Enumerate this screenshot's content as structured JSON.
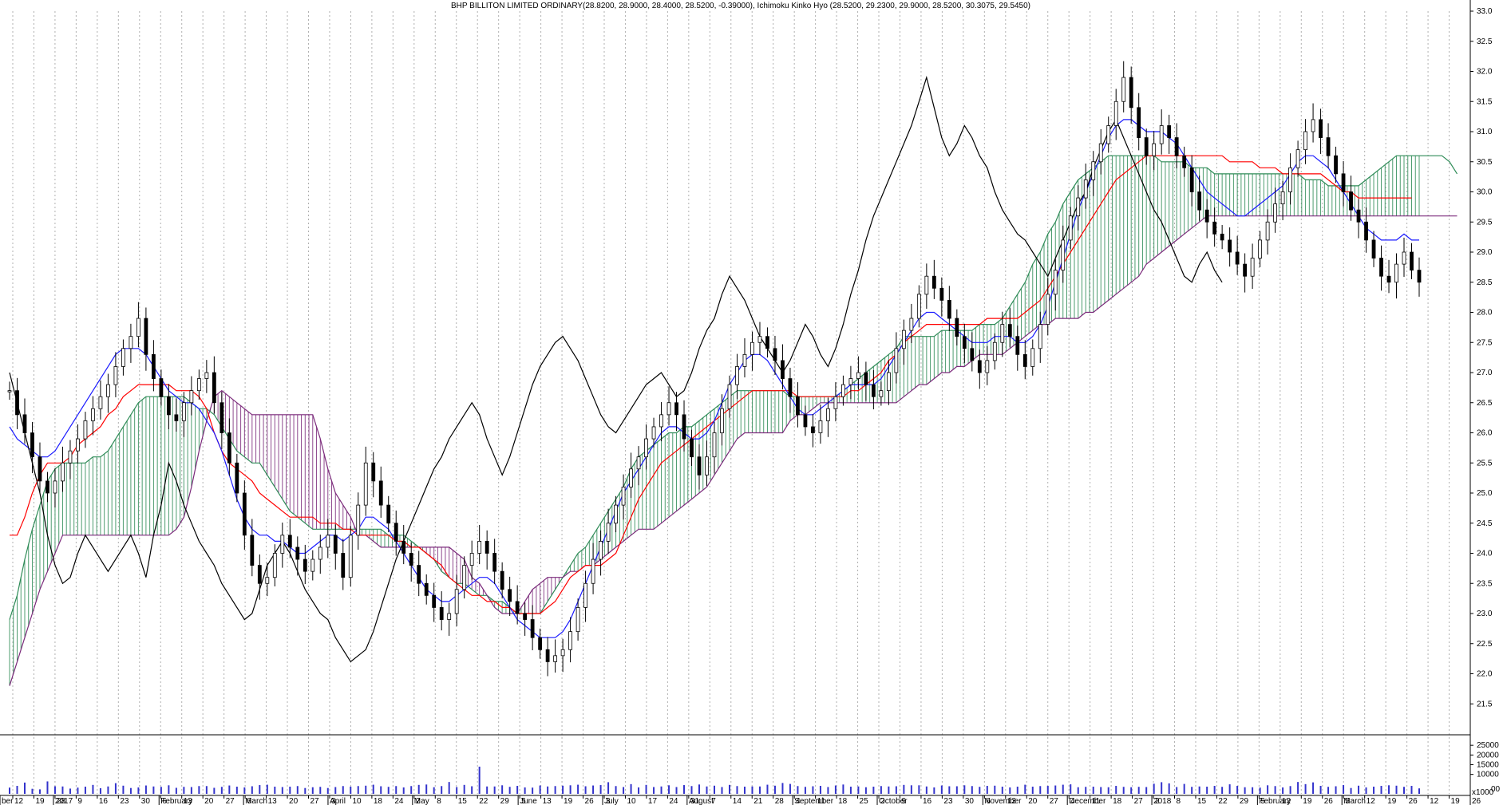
{
  "chart_data": {
    "type": "candlestick",
    "title": "BHP BILLITON LIMITED  ORDINARY(28.8200, 28.9000, 28.4000, 28.5200, -0.39000), Ichimoku Kinko Hyo (28.5200, 29.2300, 29.9000, 28.5200, 30.3075, 29.5450)",
    "y_axis": {
      "ylim": [
        21.0,
        33.0
      ],
      "ticks": [
        21.5,
        22.0,
        22.5,
        23.0,
        23.5,
        24.0,
        24.5,
        25.0,
        25.5,
        26.0,
        26.5,
        27.0,
        27.5,
        28.0,
        28.5,
        29.0,
        29.5,
        30.0,
        30.5,
        31.0,
        31.5,
        32.0,
        32.5,
        33.0
      ],
      "tick_labels": [
        "21.5",
        "22.0",
        "22.5",
        "23.0",
        "23.5",
        "24.0",
        "24.5",
        "25.0",
        "25.5",
        "26.0",
        "26.5",
        "27.0",
        "27.5",
        "28.0",
        "28.5",
        "29.0",
        "29.5",
        "30.0",
        "30.5",
        "31.0",
        "31.5",
        "32.0",
        "32.5",
        "33.0"
      ]
    },
    "volume_axis": {
      "ylim": [
        0,
        30000
      ],
      "ticks": [
        10000,
        15000,
        20000,
        25000
      ],
      "tick_labels": [
        "10000",
        "15000",
        "20000",
        "25000"
      ],
      "extra_labels": [
        "x1000",
        "00"
      ]
    },
    "x_axis": {
      "day_labels": [
        "12",
        "19",
        "28",
        "9",
        "16",
        "23",
        "30",
        "6",
        "13",
        "20",
        "27",
        "6",
        "13",
        "20",
        "27",
        "3",
        "10",
        "18",
        "24",
        "2",
        "8",
        "15",
        "22",
        "29",
        "5",
        "13",
        "19",
        "26",
        "3",
        "10",
        "17",
        "24",
        "31",
        "7",
        "14",
        "21",
        "28",
        "4",
        "11",
        "18",
        "25",
        "2",
        "9",
        "16",
        "23",
        "30",
        "6",
        "13",
        "20",
        "27",
        "4",
        "11",
        "18",
        "27",
        "2",
        "8",
        "15",
        "22",
        "29",
        "5",
        "12",
        "19",
        "26",
        "5",
        "12",
        "19",
        "26"
      ],
      "month_labels": [
        "ber",
        "2017",
        "February",
        "March",
        "April",
        "May",
        "June",
        "July",
        "August",
        "September",
        "October",
        "November",
        "December",
        "2018",
        "February",
        "March"
      ],
      "future_labels": [
        "12",
        "19",
        "26"
      ]
    },
    "close": [
      26.7,
      26.3,
      26.0,
      25.6,
      25.2,
      25.0,
      25.2,
      25.5,
      25.7,
      25.9,
      26.2,
      26.4,
      26.6,
      26.8,
      27.1,
      27.4,
      27.6,
      27.9,
      27.3,
      26.9,
      26.6,
      26.3,
      26.2,
      26.5,
      26.7,
      26.9,
      27.0,
      26.5,
      26.0,
      25.5,
      25.0,
      24.3,
      23.8,
      23.5,
      23.6,
      24.0,
      24.3,
      24.1,
      23.9,
      23.7,
      23.9,
      24.1,
      24.3,
      24.0,
      23.6,
      24.3,
      24.8,
      25.5,
      25.2,
      24.8,
      24.5,
      24.2,
      24.0,
      23.8,
      23.5,
      23.3,
      23.1,
      22.9,
      23.0,
      23.4,
      23.8,
      24.0,
      24.2,
      24.0,
      23.7,
      23.4,
      23.2,
      23.0,
      22.9,
      22.6,
      22.4,
      22.2,
      22.3,
      22.4,
      22.7,
      23.1,
      23.5,
      23.9,
      24.2,
      24.5,
      24.8,
      25.1,
      25.4,
      25.6,
      25.9,
      26.1,
      26.3,
      26.5,
      26.3,
      25.9,
      25.6,
      25.3,
      25.6,
      26.0,
      26.4,
      26.8,
      27.1,
      27.3,
      27.5,
      27.6,
      27.4,
      27.2,
      26.9,
      26.6,
      26.3,
      26.1,
      26.0,
      26.2,
      26.4,
      26.6,
      26.8,
      26.9,
      27.0,
      26.8,
      26.6,
      26.7,
      27.0,
      27.4,
      27.7,
      27.9,
      28.3,
      28.6,
      28.4,
      28.2,
      27.9,
      27.6,
      27.4,
      27.2,
      27.0,
      27.2,
      27.5,
      27.8,
      27.6,
      27.3,
      27.1,
      27.4,
      27.8,
      28.3,
      28.7,
      29.2,
      29.6,
      29.9,
      30.2,
      30.5,
      30.8,
      31.1,
      31.5,
      31.9,
      31.4,
      30.9,
      30.6,
      30.8,
      31.1,
      30.9,
      30.6,
      30.4,
      30.0,
      29.7,
      29.5,
      29.3,
      29.2,
      29.0,
      28.8,
      28.6,
      28.9,
      29.2,
      29.5,
      29.8,
      30.0,
      30.4,
      30.7,
      31.0,
      31.2,
      30.9,
      30.6,
      30.3,
      30.0,
      29.7,
      29.5,
      29.2,
      28.9,
      28.6,
      28.5,
      28.8,
      29.0,
      28.7,
      28.5
    ],
    "tenkan": [
      26.1,
      25.9,
      25.8,
      25.7,
      25.6,
      25.6,
      25.7,
      25.9,
      26.1,
      26.3,
      26.5,
      26.7,
      26.9,
      27.1,
      27.3,
      27.4,
      27.4,
      27.4,
      27.3,
      27.1,
      26.9,
      26.7,
      26.6,
      26.5,
      26.5,
      26.4,
      26.2,
      26.0,
      25.7,
      25.3,
      24.9,
      24.6,
      24.4,
      24.3,
      24.3,
      24.2,
      24.2,
      24.1,
      24.0,
      24.0,
      24.1,
      24.2,
      24.3,
      24.3,
      24.2,
      24.3,
      24.4,
      24.6,
      24.6,
      24.5,
      24.4,
      24.2,
      24.0,
      23.8,
      23.6,
      23.4,
      23.3,
      23.2,
      23.2,
      23.3,
      23.4,
      23.5,
      23.6,
      23.6,
      23.5,
      23.3,
      23.1,
      22.9,
      22.8,
      22.7,
      22.6,
      22.6,
      22.6,
      22.7,
      22.9,
      23.2,
      23.5,
      23.8,
      24.1,
      24.4,
      24.7,
      25.0,
      25.2,
      25.4,
      25.6,
      25.8,
      26.0,
      26.1,
      26.1,
      26.0,
      25.9,
      25.9,
      26.0,
      26.2,
      26.5,
      26.8,
      27.0,
      27.2,
      27.3,
      27.3,
      27.2,
      27.0,
      26.8,
      26.6,
      26.4,
      26.3,
      26.3,
      26.4,
      26.5,
      26.6,
      26.7,
      26.8,
      26.8,
      26.8,
      26.8,
      26.9,
      27.1,
      27.3,
      27.5,
      27.7,
      27.9,
      28.0,
      28.0,
      27.9,
      27.8,
      27.7,
      27.6,
      27.5,
      27.5,
      27.5,
      27.6,
      27.6,
      27.6,
      27.5,
      27.5,
      27.6,
      27.8,
      28.1,
      28.5,
      28.9,
      29.3,
      29.7,
      30.0,
      30.3,
      30.6,
      30.9,
      31.1,
      31.2,
      31.2,
      31.1,
      31.0,
      31.0,
      31.0,
      30.9,
      30.8,
      30.6,
      30.4,
      30.2,
      30.0,
      29.9,
      29.8,
      29.7,
      29.6,
      29.6,
      29.7,
      29.8,
      29.9,
      30.0,
      30.1,
      30.3,
      30.5,
      30.6,
      30.6,
      30.5,
      30.4,
      30.2,
      30.0,
      29.8,
      29.6,
      29.4,
      29.3,
      29.2,
      29.2,
      29.2,
      29.3,
      29.2,
      29.2
    ],
    "kijun": [
      24.3,
      24.3,
      24.6,
      25.0,
      25.3,
      25.5,
      25.5,
      25.5,
      25.6,
      25.8,
      25.9,
      26.0,
      26.1,
      26.3,
      26.4,
      26.6,
      26.7,
      26.8,
      26.8,
      26.8,
      26.8,
      26.8,
      26.7,
      26.7,
      26.7,
      26.6,
      26.4,
      26.0,
      25.7,
      25.5,
      25.4,
      25.3,
      25.2,
      25.0,
      24.9,
      24.8,
      24.7,
      24.6,
      24.6,
      24.6,
      24.6,
      24.5,
      24.5,
      24.5,
      24.4,
      24.4,
      24.3,
      24.3,
      24.3,
      24.3,
      24.3,
      24.2,
      24.2,
      24.1,
      24.1,
      24.0,
      23.9,
      23.8,
      23.6,
      23.5,
      23.4,
      23.3,
      23.3,
      23.2,
      23.2,
      23.1,
      23.1,
      23.0,
      23.0,
      23.0,
      23.0,
      23.1,
      23.2,
      23.4,
      23.6,
      23.7,
      23.8,
      23.8,
      23.8,
      23.9,
      24.0,
      24.3,
      24.6,
      24.9,
      25.1,
      25.3,
      25.5,
      25.6,
      25.7,
      25.8,
      25.9,
      26.0,
      26.1,
      26.2,
      26.3,
      26.4,
      26.5,
      26.6,
      26.7,
      26.7,
      26.7,
      26.7,
      26.7,
      26.7,
      26.6,
      26.6,
      26.6,
      26.6,
      26.6,
      26.6,
      26.6,
      26.7,
      26.7,
      26.8,
      26.9,
      27.0,
      27.2,
      27.3,
      27.5,
      27.6,
      27.7,
      27.8,
      27.8,
      27.8,
      27.8,
      27.8,
      27.8,
      27.8,
      27.8,
      27.9,
      27.9,
      27.9,
      27.9,
      27.9,
      28.0,
      28.1,
      28.2,
      28.4,
      28.6,
      28.8,
      29.0,
      29.2,
      29.4,
      29.6,
      29.8,
      30.0,
      30.2,
      30.3,
      30.4,
      30.5,
      30.6,
      30.6,
      30.6,
      30.6,
      30.6,
      30.6,
      30.6,
      30.6,
      30.6,
      30.6,
      30.6,
      30.5,
      30.5,
      30.5,
      30.5,
      30.4,
      30.4,
      30.4,
      30.3,
      30.3,
      30.3,
      30.3,
      30.3,
      30.3,
      30.2,
      30.1,
      30.0,
      30.0,
      29.9,
      29.9,
      29.9,
      29.9,
      29.9,
      29.9,
      29.9,
      29.9
    ],
    "senkou_a": [
      22.9,
      23.3,
      23.9,
      24.4,
      24.8,
      25.2,
      25.4,
      25.5,
      25.5,
      25.5,
      25.5,
      25.6,
      25.6,
      25.7,
      25.9,
      26.1,
      26.3,
      26.5,
      26.6,
      26.6,
      26.6,
      26.6,
      26.6,
      26.6,
      26.5,
      26.4,
      26.4,
      26.3,
      26.1,
      25.9,
      25.7,
      25.6,
      25.5,
      25.5,
      25.3,
      25.1,
      24.9,
      24.7,
      24.6,
      24.5,
      24.4,
      24.4,
      24.4,
      24.4,
      24.4,
      24.4,
      24.4,
      24.4,
      24.4,
      24.4,
      24.3,
      24.3,
      24.3,
      24.2,
      24.1,
      24.0,
      23.9,
      23.7,
      23.6,
      23.5,
      23.5,
      23.4,
      23.3,
      23.3,
      23.2,
      23.2,
      23.1,
      23.0,
      23.0,
      23.0,
      23.0,
      23.2,
      23.4,
      23.6,
      23.8,
      24.0,
      24.1,
      24.3,
      24.5,
      24.7,
      24.9,
      25.1,
      25.4,
      25.6,
      25.7,
      25.8,
      25.9,
      26.0,
      26.0,
      26.1,
      26.1,
      26.2,
      26.3,
      26.4,
      26.5,
      26.6,
      26.7,
      26.7,
      26.7,
      26.7,
      26.7,
      26.7,
      26.7,
      26.6,
      26.6,
      26.6,
      26.6,
      26.6,
      26.6,
      26.6,
      26.7,
      26.8,
      26.9,
      27.0,
      27.1,
      27.2,
      27.3,
      27.4,
      27.6,
      27.6,
      27.6,
      27.6,
      27.6,
      27.7,
      27.7,
      27.7,
      27.7,
      27.7,
      27.8,
      27.8,
      27.8,
      27.9,
      28.1,
      28.3,
      28.5,
      28.8,
      29.0,
      29.3,
      29.5,
      29.8,
      30.0,
      30.2,
      30.3,
      30.4,
      30.5,
      30.6,
      30.6,
      30.6,
      30.6,
      30.6,
      30.6,
      30.6,
      30.5,
      30.5,
      30.5,
      30.5,
      30.4,
      30.4,
      30.4,
      30.3,
      30.3,
      30.3,
      30.3,
      30.3,
      30.3,
      30.3,
      30.3,
      30.3,
      30.3,
      30.3,
      30.3,
      30.2,
      30.2,
      30.2,
      30.1,
      30.1,
      30.1,
      30.1,
      30.1,
      30.2,
      30.3,
      30.4,
      30.5,
      30.6,
      30.6,
      30.6,
      30.6,
      30.6,
      30.6,
      30.6,
      30.5,
      30.3
    ],
    "senkou_b": [
      21.8,
      22.2,
      22.6,
      23.0,
      23.4,
      23.7,
      24.0,
      24.3,
      24.3,
      24.3,
      24.3,
      24.3,
      24.3,
      24.3,
      24.3,
      24.3,
      24.3,
      24.3,
      24.3,
      24.3,
      24.3,
      24.3,
      24.4,
      24.6,
      25.1,
      25.7,
      26.2,
      26.6,
      26.7,
      26.6,
      26.5,
      26.4,
      26.3,
      26.3,
      26.3,
      26.3,
      26.3,
      26.3,
      26.3,
      26.3,
      26.3,
      25.9,
      25.4,
      25.0,
      24.8,
      24.6,
      24.3,
      24.3,
      24.2,
      24.1,
      24.1,
      24.1,
      24.1,
      24.1,
      24.1,
      24.1,
      24.1,
      24.1,
      24.1,
      24.0,
      23.9,
      23.6,
      23.5,
      23.3,
      23.1,
      23.0,
      23.0,
      23.0,
      23.2,
      23.4,
      23.5,
      23.6,
      23.6,
      23.6,
      23.7,
      23.7,
      23.8,
      23.8,
      23.9,
      24.0,
      24.1,
      24.2,
      24.3,
      24.4,
      24.4,
      24.4,
      24.5,
      24.6,
      24.7,
      24.8,
      24.9,
      25.0,
      25.1,
      25.3,
      25.5,
      25.7,
      25.9,
      26.0,
      26.0,
      26.0,
      26.0,
      26.0,
      26.0,
      26.2,
      26.3,
      26.3,
      26.4,
      26.5,
      26.5,
      26.5,
      26.5,
      26.5,
      26.5,
      26.5,
      26.5,
      26.5,
      26.5,
      26.5,
      26.6,
      26.7,
      26.8,
      26.8,
      26.9,
      27.0,
      27.0,
      27.1,
      27.1,
      27.2,
      27.3,
      27.3,
      27.3,
      27.3,
      27.4,
      27.5,
      27.6,
      27.7,
      27.8,
      27.8,
      27.9,
      27.9,
      27.9,
      27.9,
      28.0,
      28.0,
      28.1,
      28.2,
      28.3,
      28.4,
      28.5,
      28.6,
      28.8,
      28.9,
      29.0,
      29.1,
      29.2,
      29.3,
      29.4,
      29.5,
      29.6,
      29.6,
      29.6,
      29.6,
      29.6,
      29.6,
      29.6,
      29.6,
      29.6,
      29.6,
      29.6,
      29.6,
      29.6,
      29.6,
      29.6,
      29.6,
      29.6,
      29.6,
      29.6,
      29.6,
      29.6,
      29.6,
      29.6,
      29.6,
      29.6,
      29.6,
      29.6,
      29.6,
      29.6,
      29.6,
      29.6,
      29.6,
      29.6,
      29.6
    ]
  },
  "colors": {
    "candle": "#000000",
    "tenkan": "#1a1aff",
    "kijun": "#ff0000",
    "senkou_a": "#2e8b57",
    "senkou_b": "#7b2a7b",
    "chikou": "#000000",
    "volume": "#3333cc",
    "gridline": "#b0b0b0"
  },
  "volume": [
    3200,
    4100,
    5800,
    2600,
    2300,
    6400,
    3900,
    3800,
    2700,
    3200,
    3700,
    4600,
    2900,
    3800,
    5500,
    4200,
    3000,
    3300,
    4300,
    3800,
    3600,
    4400,
    3100,
    3600,
    3500,
    4000,
    4000,
    3100,
    3600,
    4300,
    3700,
    3300,
    3900,
    4500,
    4700,
    3700,
    3500,
    3700,
    4000,
    3000,
    3400,
    3600,
    3000,
    3500,
    4000,
    3700,
    4000,
    4200,
    4700,
    3900,
    3600,
    4000,
    3300,
    4000,
    4600,
    4800,
    3400,
    4000,
    6100,
    3500,
    4600,
    3900,
    14000,
    3800,
    3800,
    4400,
    3600,
    4100,
    3300,
    3200,
    4300,
    3800,
    4000,
    4200,
    4400,
    4700,
    3900,
    4300,
    4500,
    6000,
    4000,
    3500,
    5000,
    3300,
    4600,
    3500,
    3800,
    4400,
    3500,
    4500,
    4000,
    4800,
    3800,
    4200,
    3500,
    4600,
    4000,
    3700,
    3800,
    3800,
    4700,
    4200,
    5600,
    5100,
    4000,
    3600,
    3900,
    4100,
    3500,
    4300,
    4800,
    3700,
    3800,
    3400,
    3700,
    4000,
    3800,
    3900,
    4600,
    4400,
    4400,
    3800,
    3300,
    4300,
    3900,
    3900,
    4400,
    4000,
    3600,
    4100,
    4200,
    3700,
    3300,
    3700,
    4700,
    3700,
    4000,
    4100,
    4300,
    4700,
    4900,
    3400,
    3600,
    3700,
    3500,
    3400,
    4100,
    3600,
    3400,
    3600,
    3500,
    5200,
    6000,
    5400,
    3500,
    5100,
    3600,
    3800,
    3700,
    4100,
    3600,
    4900,
    4100,
    3400,
    3400,
    3200,
    4400,
    4000,
    3300,
    4000,
    6100,
    5000,
    5900,
    4100,
    3600,
    3900,
    4500,
    3000,
    4200,
    3300,
    3700,
    4100,
    4400,
    4200,
    3600,
    4100,
    2800
  ]
}
